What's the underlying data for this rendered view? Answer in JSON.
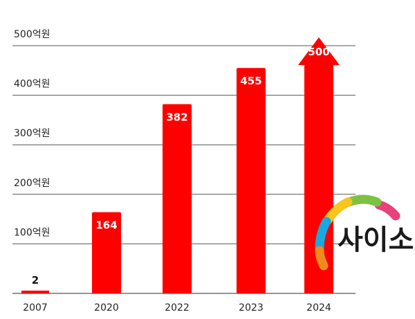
{
  "chart_data": {
    "type": "bar",
    "categories": [
      "2007",
      "2020",
      "2022",
      "2023",
      "2024"
    ],
    "values": [
      2,
      164,
      382,
      455,
      500
    ],
    "value_labels": [
      "2",
      "164",
      "382",
      "455",
      "500"
    ],
    "y_ticks": [
      {
        "value": 100,
        "label": "100억원"
      },
      {
        "value": 200,
        "label": "200억원"
      },
      {
        "value": 300,
        "label": "300억원"
      },
      {
        "value": 400,
        "label": "400억원"
      },
      {
        "value": 500,
        "label": "500억원"
      }
    ],
    "ylim": [
      0,
      500
    ],
    "grid": true,
    "colors": {
      "bar": "#ff0000",
      "grid": "#555555",
      "label": "#222222"
    },
    "last_bar_style": "arrow-up"
  },
  "logo": {
    "text": "사이소",
    "colors": [
      "#e8417c",
      "#7cc242",
      "#f7c51e",
      "#19a9e1",
      "#f08a1c"
    ]
  }
}
